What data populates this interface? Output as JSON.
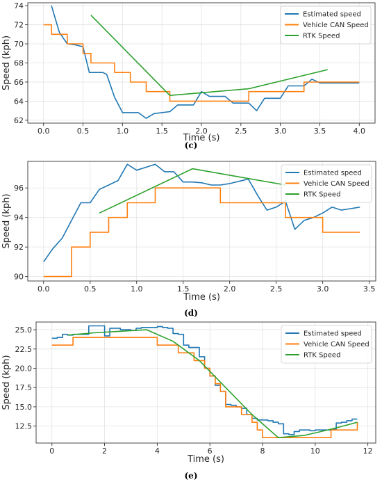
{
  "figure": {
    "series_colors": {
      "Estimated speed": "#1f77b4",
      "Vehicle CAN Speed": "#ff7f0e",
      "RTK Speed": "#2ca02c"
    }
  },
  "chart_data": [
    {
      "type": "line",
      "caption": "(c)",
      "xlabel": "Time (s)",
      "ylabel": "Speed (kph)",
      "xlim": [
        -0.2,
        4.2
      ],
      "ylim": [
        61.7,
        74.3
      ],
      "xticks": [
        0.0,
        0.5,
        1.0,
        1.5,
        2.0,
        2.5,
        3.0,
        3.5,
        4.0
      ],
      "xtick_labels": [
        "0.0",
        "0.5",
        "1.0",
        "1.5",
        "2.0",
        "2.5",
        "3.0",
        "3.5",
        "4.0"
      ],
      "yticks": [
        62,
        64,
        66,
        68,
        70,
        72,
        74
      ],
      "ytick_labels": [
        "62",
        "64",
        "66",
        "68",
        "70",
        "72",
        "74"
      ],
      "grid": true,
      "legend_position": "top-right",
      "series": [
        {
          "name": "Estimated speed",
          "step": false,
          "x": [
            0.1,
            0.2,
            0.3,
            0.4,
            0.5,
            0.58,
            0.6,
            0.75,
            0.8,
            0.9,
            1.0,
            1.1,
            1.2,
            1.3,
            1.4,
            1.5,
            1.6,
            1.7,
            1.8,
            1.9,
            2.0,
            2.1,
            2.2,
            2.3,
            2.4,
            2.5,
            2.6,
            2.7,
            2.8,
            2.9,
            3.0,
            3.1,
            3.2,
            3.3,
            3.4,
            3.5,
            3.6,
            3.7,
            3.8,
            3.9,
            4.0
          ],
          "y": [
            74.0,
            71.2,
            70.0,
            69.9,
            69.7,
            67.0,
            67.0,
            67.0,
            66.8,
            64.4,
            62.8,
            62.8,
            62.8,
            62.2,
            62.7,
            62.8,
            62.9,
            63.6,
            63.6,
            63.6,
            65.0,
            64.5,
            64.5,
            64.5,
            63.8,
            63.8,
            63.8,
            63.0,
            64.3,
            64.3,
            64.3,
            65.6,
            65.6,
            65.6,
            66.3,
            65.9,
            65.9,
            65.9,
            65.9,
            65.9,
            65.9
          ]
        },
        {
          "name": "Vehicle CAN Speed",
          "step": true,
          "x": [
            0.0,
            0.1,
            0.3,
            0.5,
            0.6,
            0.7,
            0.9,
            1.0,
            1.1,
            1.2,
            1.3,
            1.4,
            1.5,
            1.6,
            2.0,
            2.5,
            2.6,
            3.3,
            3.4,
            4.0
          ],
          "y": [
            72,
            71,
            70,
            69,
            68,
            68,
            67,
            67,
            66,
            66,
            65,
            65,
            65,
            64,
            64,
            64,
            65,
            66,
            66,
            66
          ]
        },
        {
          "name": "RTK Speed",
          "step": false,
          "x": [
            0.6,
            1.6,
            2.6,
            3.6
          ],
          "y": [
            73.0,
            64.6,
            65.3,
            67.3
          ]
        }
      ]
    },
    {
      "type": "line",
      "caption": "(d)",
      "xlabel": "Time (s)",
      "ylabel": "Speed (kph)",
      "xlim": [
        -0.17,
        3.57
      ],
      "ylim": [
        89.7,
        97.8
      ],
      "xticks": [
        0.0,
        0.5,
        1.0,
        1.5,
        2.0,
        2.5,
        3.0,
        3.5
      ],
      "xtick_labels": [
        "0.0",
        "0.5",
        "1.0",
        "1.5",
        "2.0",
        "2.5",
        "3.0",
        "3.5"
      ],
      "yticks": [
        90,
        92,
        94,
        96
      ],
      "ytick_labels": [
        "90",
        "92",
        "94",
        "96"
      ],
      "grid": true,
      "legend_position": "top-right",
      "series": [
        {
          "name": "Estimated speed",
          "step": false,
          "x": [
            0.0,
            0.1,
            0.2,
            0.3,
            0.4,
            0.5,
            0.6,
            0.7,
            0.8,
            0.9,
            1.0,
            1.1,
            1.2,
            1.3,
            1.4,
            1.5,
            1.6,
            1.7,
            1.8,
            1.9,
            2.0,
            2.1,
            2.2,
            2.3,
            2.4,
            2.5,
            2.6,
            2.7,
            2.8,
            2.9,
            3.0,
            3.1,
            3.2,
            3.3,
            3.4
          ],
          "y": [
            91.0,
            91.9,
            92.6,
            93.8,
            95.0,
            95.0,
            95.9,
            96.2,
            96.5,
            97.6,
            97.2,
            97.4,
            97.6,
            97.1,
            97.1,
            96.4,
            96.4,
            96.35,
            96.2,
            96.2,
            96.3,
            96.45,
            96.6,
            95.5,
            94.5,
            94.7,
            95.1,
            93.2,
            93.8,
            94.0,
            94.3,
            94.7,
            94.5,
            94.6,
            94.7
          ]
        },
        {
          "name": "Vehicle CAN Speed",
          "step": true,
          "x": [
            0.0,
            0.1,
            0.3,
            0.4,
            0.5,
            0.7,
            0.9,
            1.1,
            1.2,
            1.3,
            1.9,
            2.5,
            2.6,
            2.9,
            3.0,
            3.4
          ],
          "y": [
            90,
            90,
            92,
            92,
            93,
            94,
            95,
            95,
            96,
            96,
            95,
            95,
            94,
            94,
            93,
            93
          ]
        },
        {
          "name": "RTK Speed",
          "step": false,
          "x": [
            0.6,
            1.6,
            2.6
          ],
          "y": [
            94.3,
            97.3,
            96.2
          ]
        }
      ]
    },
    {
      "type": "line",
      "caption": "(e)",
      "xlabel": "Time (s)",
      "ylabel": "Speed (kph)",
      "xlim": [
        -0.6,
        12.3
      ],
      "ylim": [
        10.3,
        26.0
      ],
      "xticks": [
        0,
        2,
        4,
        6,
        8,
        10,
        12
      ],
      "xtick_labels": [
        "0",
        "2",
        "4",
        "6",
        "8",
        "10",
        "12"
      ],
      "yticks": [
        12.5,
        15.0,
        17.5,
        20.0,
        22.5,
        25.0
      ],
      "ytick_labels": [
        "12.5",
        "15.0",
        "17.5",
        "20.0",
        "22.5",
        "25.0"
      ],
      "grid": true,
      "legend_position": "top-right",
      "series": [
        {
          "name": "Estimated speed",
          "step": true,
          "x": [
            0.0,
            0.2,
            0.4,
            0.6,
            0.8,
            1.0,
            1.2,
            1.4,
            1.6,
            1.8,
            2.0,
            2.2,
            2.4,
            2.6,
            2.8,
            3.0,
            3.2,
            3.4,
            3.6,
            3.8,
            4.0,
            4.2,
            4.4,
            4.6,
            4.8,
            5.0,
            5.2,
            5.4,
            5.6,
            5.8,
            6.0,
            6.2,
            6.4,
            6.6,
            6.8,
            7.0,
            7.2,
            7.4,
            7.6,
            7.8,
            8.0,
            8.2,
            8.4,
            8.6,
            8.8,
            9.0,
            9.2,
            9.4,
            9.6,
            9.8,
            10.0,
            10.2,
            10.4,
            10.6,
            10.8,
            11.0,
            11.2,
            11.4,
            11.6
          ],
          "y": [
            23.9,
            24.0,
            24.4,
            24.3,
            24.4,
            24.4,
            24.4,
            25.5,
            25.5,
            25.5,
            24.2,
            25.2,
            25.2,
            25.0,
            25.0,
            24.9,
            25.2,
            25.3,
            25.3,
            25.3,
            25.4,
            25.3,
            25.2,
            24.5,
            24.4,
            23.0,
            22.7,
            22.7,
            21.5,
            20.0,
            19.0,
            17.8,
            17.0,
            15.3,
            15.2,
            15.0,
            14.8,
            14.0,
            13.5,
            13.3,
            13.3,
            13.2,
            13.0,
            12.8,
            11.5,
            11.4,
            11.8,
            12.0,
            12.0,
            11.9,
            12.0,
            12.0,
            12.0,
            12.1,
            12.9,
            13.0,
            13.2,
            13.4,
            13.4
          ]
        },
        {
          "name": "Vehicle CAN Speed",
          "step": true,
          "x": [
            0.0,
            0.4,
            0.8,
            4.0,
            4.4,
            4.8,
            5.2,
            5.4,
            5.8,
            6.0,
            6.2,
            6.4,
            6.6,
            7.0,
            7.2,
            7.4,
            7.6,
            7.8,
            8.0,
            8.6,
            9.0,
            10.6,
            11.6
          ],
          "y": [
            23,
            23,
            24,
            23,
            23,
            22,
            22,
            21,
            20,
            19,
            18,
            17,
            15,
            15,
            14,
            14,
            13,
            12,
            11,
            11,
            11,
            12,
            13
          ]
        },
        {
          "name": "RTK Speed",
          "step": false,
          "x": [
            0.6,
            1.6,
            2.6,
            3.6,
            4.6,
            5.6,
            6.6,
            7.6,
            8.6,
            9.6,
            10.6,
            11.6
          ],
          "y": [
            24.3,
            24.6,
            24.8,
            25.0,
            23.5,
            21.0,
            17.5,
            14.0,
            11.0,
            11.3,
            12.1,
            13.0
          ]
        }
      ]
    }
  ]
}
